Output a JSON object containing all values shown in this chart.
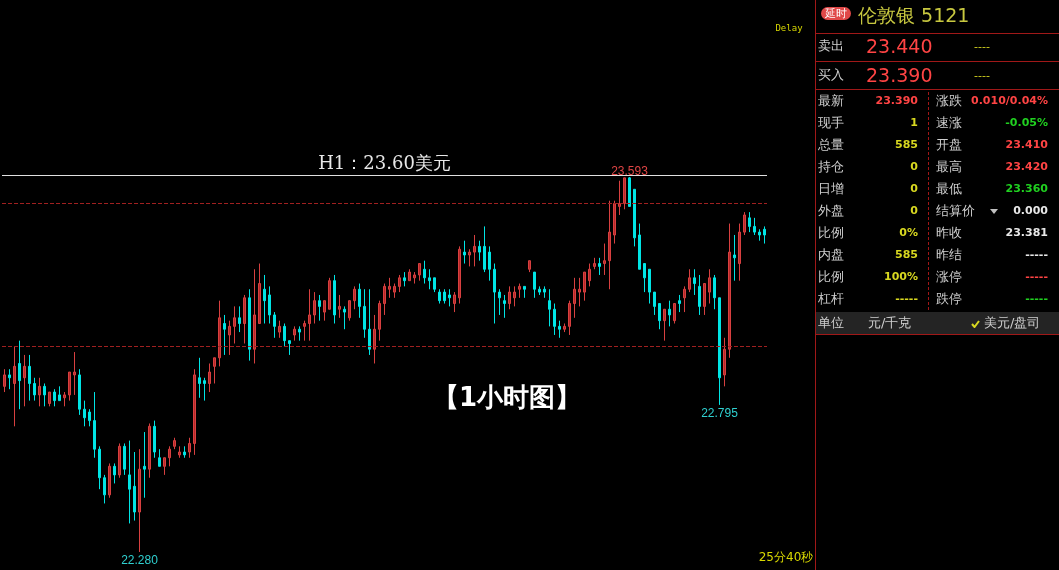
{
  "chart_data": [
    {
      "type": "candlestick",
      "categories": [
        null,
        null,
        null,
        null,
        null,
        null,
        null,
        null,
        null,
        null,
        null,
        null,
        null,
        null,
        null,
        null,
        null,
        null,
        null,
        null,
        null,
        null,
        null,
        null,
        null,
        null,
        null,
        null,
        null,
        null,
        null,
        null,
        null,
        null,
        null,
        null,
        null,
        null,
        null,
        null,
        null,
        null,
        null,
        null,
        null,
        null,
        null,
        null,
        null,
        null,
        null,
        null,
        null,
        null,
        null,
        null,
        null,
        null,
        null,
        null,
        null,
        null,
        null,
        null,
        null,
        null,
        null,
        null,
        null,
        null,
        null,
        null,
        null,
        null,
        null,
        null,
        null,
        null,
        null,
        null,
        null,
        null,
        null,
        null,
        null,
        null,
        null,
        null,
        null,
        null,
        null,
        null,
        null,
        null,
        null,
        null,
        null,
        null,
        null,
        null,
        null,
        null,
        null,
        null,
        null,
        null,
        null,
        null,
        null,
        null,
        null,
        null,
        null,
        null,
        null,
        null,
        null,
        null,
        null,
        null,
        null,
        null,
        null,
        null,
        null,
        null,
        null,
        null,
        null,
        null,
        null,
        null,
        null,
        null,
        null,
        null,
        null,
        null,
        null,
        null,
        null,
        null,
        null,
        null,
        null,
        null,
        null,
        null,
        null,
        null,
        null,
        null,
        null
      ],
      "ohlc": [
        [
          22.86,
          22.92,
          22.84,
          22.9
        ],
        [
          22.9,
          22.92,
          22.85,
          22.89
        ],
        [
          22.87,
          23.0,
          22.72,
          22.93
        ],
        [
          22.94,
          23.02,
          22.78,
          22.88
        ],
        [
          22.89,
          22.97,
          22.79,
          22.93
        ],
        [
          22.93,
          22.97,
          22.81,
          22.87
        ],
        [
          22.87,
          22.89,
          22.81,
          22.83
        ],
        [
          22.83,
          22.89,
          22.79,
          22.86
        ],
        [
          22.86,
          22.87,
          22.79,
          22.83
        ],
        [
          22.8,
          22.84,
          22.79,
          22.84
        ],
        [
          22.84,
          22.85,
          22.79,
          22.81
        ],
        [
          22.83,
          22.86,
          22.81,
          22.81
        ],
        [
          22.82,
          22.84,
          22.79,
          22.83
        ],
        [
          22.83,
          22.91,
          22.81,
          22.91
        ],
        [
          22.9,
          22.98,
          22.83,
          22.91
        ],
        [
          22.9,
          22.92,
          22.76,
          22.78
        ],
        [
          22.78,
          22.81,
          22.72,
          22.75
        ],
        [
          22.77,
          22.78,
          22.72,
          22.74
        ],
        [
          22.74,
          22.84,
          22.61,
          22.64
        ],
        [
          22.64,
          22.65,
          22.5,
          22.54
        ],
        [
          22.54,
          22.55,
          22.45,
          22.48
        ],
        [
          22.48,
          22.59,
          22.47,
          22.58
        ],
        [
          22.58,
          22.59,
          22.52,
          22.55
        ],
        [
          22.55,
          22.66,
          22.54,
          22.65
        ],
        [
          22.65,
          22.66,
          22.55,
          22.57
        ],
        [
          22.55,
          22.67,
          22.38,
          22.5
        ],
        [
          22.51,
          22.63,
          22.39,
          22.42
        ],
        [
          22.42,
          22.64,
          22.28,
          22.57
        ],
        [
          22.58,
          22.7,
          22.47,
          22.57
        ],
        [
          22.57,
          22.73,
          22.54,
          22.72
        ],
        [
          22.72,
          22.74,
          22.61,
          22.63
        ],
        [
          22.61,
          22.64,
          22.58,
          22.58
        ],
        [
          22.58,
          22.61,
          22.55,
          22.61
        ],
        [
          22.61,
          22.65,
          22.58,
          22.64
        ],
        [
          22.65,
          22.68,
          22.64,
          22.67
        ],
        [
          22.62,
          22.65,
          22.61,
          22.63
        ],
        [
          22.63,
          22.65,
          22.61,
          22.62
        ],
        [
          22.63,
          22.68,
          22.61,
          22.66
        ],
        [
          22.66,
          22.92,
          22.62,
          22.9
        ],
        [
          22.89,
          22.96,
          22.82,
          22.87
        ],
        [
          22.88,
          22.89,
          22.81,
          22.87
        ],
        [
          22.87,
          22.94,
          22.84,
          22.91
        ],
        [
          22.93,
          22.96,
          22.87,
          22.96
        ],
        [
          22.96,
          23.16,
          22.93,
          23.1
        ],
        [
          23.08,
          23.11,
          22.97,
          23.06
        ],
        [
          23.04,
          23.09,
          22.97,
          23.07
        ],
        [
          23.07,
          23.14,
          23.01,
          23.1
        ],
        [
          23.1,
          23.14,
          23.05,
          23.08
        ],
        [
          23.08,
          23.18,
          23.01,
          23.17
        ],
        [
          23.17,
          23.2,
          22.95,
          22.99
        ],
        [
          22.99,
          23.27,
          22.94,
          23.11
        ],
        [
          23.08,
          23.29,
          23.08,
          23.22
        ],
        [
          23.2,
          23.25,
          23.08,
          23.16
        ],
        [
          23.18,
          23.21,
          23.08,
          23.11
        ],
        [
          23.11,
          23.12,
          23.03,
          23.07
        ],
        [
          23.05,
          23.09,
          23.03,
          23.07
        ],
        [
          23.07,
          23.08,
          23.0,
          23.02
        ],
        [
          23.02,
          23.02,
          22.97,
          23.01
        ],
        [
          23.04,
          23.07,
          23.02,
          23.06
        ],
        [
          23.06,
          23.07,
          23.02,
          23.05
        ],
        [
          23.07,
          23.09,
          23.02,
          23.08
        ],
        [
          23.08,
          23.2,
          23.02,
          23.11
        ],
        [
          23.11,
          23.19,
          23.08,
          23.16
        ],
        [
          23.16,
          23.18,
          23.09,
          23.14
        ],
        [
          23.12,
          23.16,
          23.09,
          23.16
        ],
        [
          23.13,
          23.24,
          23.13,
          23.23
        ],
        [
          23.23,
          23.25,
          23.08,
          23.11
        ],
        [
          23.13,
          23.18,
          23.1,
          23.14
        ],
        [
          23.13,
          23.14,
          23.06,
          23.12
        ],
        [
          23.1,
          23.16,
          23.09,
          23.16
        ],
        [
          23.16,
          23.21,
          23.13,
          23.2
        ],
        [
          23.2,
          23.22,
          23.1,
          23.14
        ],
        [
          23.14,
          23.2,
          23.03,
          23.06
        ],
        [
          23.06,
          23.2,
          22.97,
          22.99
        ],
        [
          22.99,
          23.11,
          22.94,
          23.06
        ],
        [
          23.06,
          23.16,
          23.02,
          23.15
        ],
        [
          23.15,
          23.22,
          23.11,
          23.21
        ],
        [
          23.2,
          23.24,
          23.17,
          23.21
        ],
        [
          23.19,
          23.22,
          23.17,
          23.21
        ],
        [
          23.21,
          23.25,
          23.19,
          23.24
        ],
        [
          23.24,
          23.26,
          23.21,
          23.23
        ],
        [
          23.23,
          23.27,
          23.23,
          23.26
        ],
        [
          23.24,
          23.26,
          23.22,
          23.25
        ],
        [
          23.25,
          23.29,
          23.23,
          23.29
        ],
        [
          23.27,
          23.3,
          23.22,
          23.24
        ],
        [
          23.24,
          23.27,
          23.2,
          23.23
        ],
        [
          23.24,
          23.24,
          23.19,
          23.2
        ],
        [
          23.19,
          23.2,
          23.15,
          23.16
        ],
        [
          23.19,
          23.2,
          23.15,
          23.16
        ],
        [
          23.18,
          23.2,
          23.14,
          23.17
        ],
        [
          23.15,
          23.19,
          23.12,
          23.18
        ],
        [
          23.17,
          23.35,
          23.15,
          23.34
        ],
        [
          23.33,
          23.37,
          23.29,
          23.32
        ],
        [
          23.32,
          23.34,
          23.28,
          23.33
        ],
        [
          23.33,
          23.39,
          23.28,
          23.35
        ],
        [
          23.35,
          23.37,
          23.3,
          23.33
        ],
        [
          23.35,
          23.42,
          23.26,
          23.27
        ],
        [
          23.33,
          23.35,
          23.23,
          23.27
        ],
        [
          23.27,
          23.29,
          23.08,
          23.19
        ],
        [
          23.19,
          23.2,
          23.11,
          23.17
        ],
        [
          23.16,
          23.18,
          23.1,
          23.15
        ],
        [
          23.15,
          23.21,
          23.13,
          23.19
        ],
        [
          23.17,
          23.21,
          23.14,
          23.19
        ],
        [
          23.2,
          23.22,
          23.17,
          23.21
        ],
        [
          23.21,
          23.21,
          23.17,
          23.2
        ],
        [
          23.27,
          23.3,
          23.26,
          23.3
        ],
        [
          23.26,
          23.26,
          23.17,
          23.2
        ],
        [
          23.2,
          23.21,
          23.18,
          23.19
        ],
        [
          23.2,
          23.21,
          23.17,
          23.19
        ],
        [
          23.16,
          23.2,
          23.07,
          23.13
        ],
        [
          23.13,
          23.15,
          23.04,
          23.07
        ],
        [
          23.07,
          23.09,
          23.03,
          23.06
        ],
        [
          23.06,
          23.08,
          23.05,
          23.07
        ],
        [
          23.07,
          23.16,
          23.04,
          23.15
        ],
        [
          23.15,
          23.24,
          23.1,
          23.2
        ],
        [
          23.19,
          23.24,
          23.14,
          23.2
        ],
        [
          23.19,
          23.26,
          23.16,
          23.26
        ],
        [
          23.23,
          23.29,
          23.21,
          23.27
        ],
        [
          23.28,
          23.31,
          23.27,
          23.29
        ],
        [
          23.29,
          23.31,
          23.25,
          23.28
        ],
        [
          23.29,
          23.36,
          23.25,
          23.3
        ],
        [
          23.3,
          23.51,
          23.2,
          23.4
        ],
        [
          23.39,
          23.51,
          23.36,
          23.5
        ],
        [
          23.49,
          23.58,
          23.46,
          23.5
        ],
        [
          23.5,
          23.59,
          23.48,
          23.59
        ],
        [
          23.59,
          23.593,
          23.49,
          23.49
        ],
        [
          23.55,
          23.55,
          23.35,
          23.38
        ],
        [
          23.39,
          23.43,
          23.27,
          23.27
        ],
        [
          23.29,
          23.29,
          23.19,
          23.24
        ],
        [
          23.27,
          23.27,
          23.15,
          23.19
        ],
        [
          23.19,
          23.19,
          23.11,
          23.14
        ],
        [
          23.15,
          23.15,
          23.06,
          23.09
        ],
        [
          23.09,
          23.13,
          23.02,
          23.13
        ],
        [
          23.13,
          23.16,
          23.07,
          23.11
        ],
        [
          23.09,
          23.15,
          23.08,
          23.15
        ],
        [
          23.16,
          23.18,
          23.12,
          23.15
        ],
        [
          23.17,
          23.21,
          23.12,
          23.2
        ],
        [
          23.2,
          23.27,
          23.19,
          23.24
        ],
        [
          23.24,
          23.27,
          23.18,
          23.22
        ],
        [
          23.21,
          23.25,
          23.11,
          23.14
        ],
        [
          23.14,
          23.22,
          23.11,
          23.22
        ],
        [
          23.19,
          23.27,
          23.15,
          23.24
        ],
        [
          23.24,
          23.25,
          23.13,
          23.17
        ],
        [
          23.17,
          23.17,
          22.795,
          22.89
        ],
        [
          22.9,
          23.03,
          22.86,
          22.99
        ],
        [
          22.99,
          23.43,
          22.96,
          23.33
        ],
        [
          23.32,
          23.39,
          23.23,
          23.31
        ],
        [
          23.29,
          23.43,
          23.23,
          23.4
        ],
        [
          23.4,
          23.47,
          23.39,
          23.46
        ],
        [
          23.45,
          23.47,
          23.4,
          23.42
        ],
        [
          23.42,
          23.45,
          23.39,
          23.4
        ],
        [
          23.4,
          23.41,
          23.37,
          23.39
        ],
        [
          23.41,
          23.42,
          23.36,
          23.39
        ]
      ],
      "ref_lines": [
        {
          "axis": "y",
          "value": 23.6,
          "label": "H1：23.60美元",
          "color": "#e0e0e0",
          "line_style": "solid"
        },
        {
          "axis": "y",
          "value": 23.5,
          "label": null,
          "color": "#a02020",
          "line_style": "dashed"
        },
        {
          "axis": "y",
          "value": 23.0,
          "label": null,
          "color": "#a02020",
          "line_style": "dashed"
        }
      ],
      "annotations": [
        {
          "text": "23.593",
          "y": 23.593
        },
        {
          "text": "22.280",
          "y": 22.28
        },
        {
          "text": "22.795",
          "y": 22.795
        },
        "【1小时图】",
        "Delay",
        "25分40秒"
      ]
    },
    {
      "type": "other",
      "title": "伦敦银 5121",
      "annotations": [
        "延时",
        "卖出",
        "23.440",
        "----",
        "买入",
        "23.390",
        "----",
        "最新",
        "23.390",
        "涨跌",
        "0.010/0.04%",
        "现手",
        "1",
        "速涨",
        "-0.05%",
        "总量",
        "585",
        "开盘",
        "23.410",
        "持仓",
        "0",
        "最高",
        "23.420",
        "日增",
        "0",
        "最低",
        "23.360",
        "外盘",
        "0",
        "结算价",
        "0.000",
        "比例",
        "0%",
        "昨收",
        "23.381",
        "内盘",
        "585",
        "昨结",
        "-----",
        "比例",
        "100%",
        "涨停",
        "-----",
        "杠杆",
        "-----",
        "跌停",
        "-----",
        "单位",
        "元/千克",
        "美元/盘司"
      ]
    }
  ]
}
